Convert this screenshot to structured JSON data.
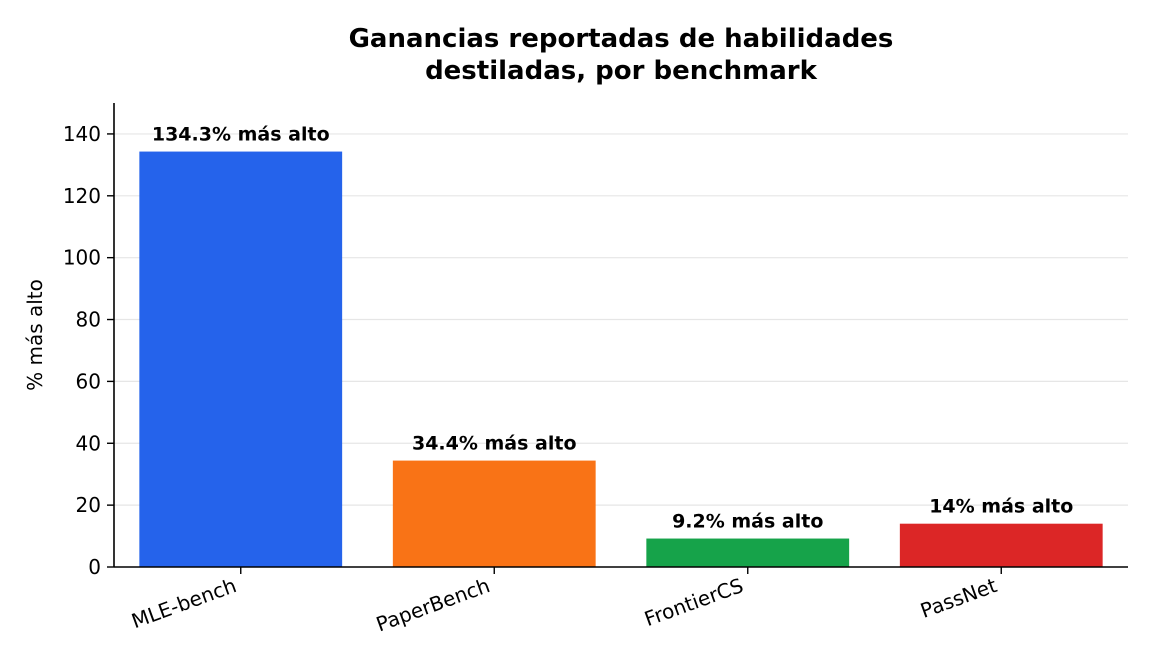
{
  "chart_data": {
    "type": "bar",
    "title": [
      "Ganancias reportadas de habilidades",
      "destiladas, por benchmark"
    ],
    "xlabel": "",
    "ylabel": "% más alto",
    "categories": [
      "MLE-bench",
      "PaperBench",
      "FrontierCS",
      "PassNet"
    ],
    "values": [
      134.3,
      34.4,
      9.2,
      14
    ],
    "data_labels": [
      "134.3% más alto",
      "34.4% más alto",
      "9.2% más alto",
      "14% más alto"
    ],
    "colors": [
      "#2563eb",
      "#f97316",
      "#16a34a",
      "#dc2626"
    ],
    "ylim": [
      0,
      150
    ],
    "yticks": [
      0,
      20,
      40,
      60,
      80,
      100,
      120,
      140
    ],
    "grid": "horizontal",
    "legend": "none"
  }
}
